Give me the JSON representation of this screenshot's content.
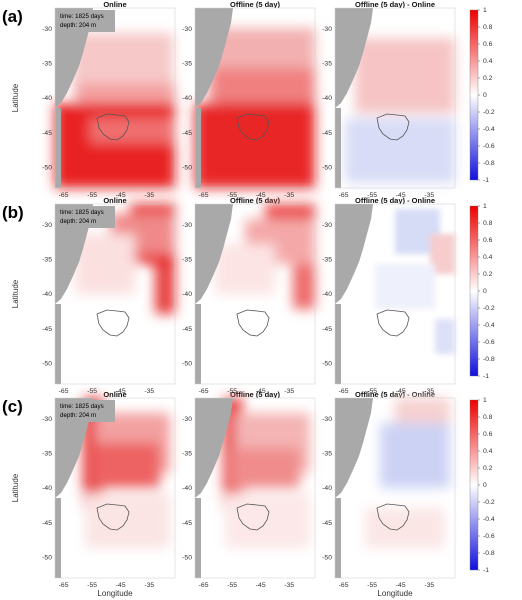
{
  "chart_data": {
    "type": "heatmap",
    "rows": [
      "(a)",
      "(b)",
      "(c)"
    ],
    "column_titles": [
      "Online",
      "Offline (5 day)",
      "Offline (5 day) - Online"
    ],
    "annotation": {
      "time": "time: 1825 days",
      "depth": "depth: 204 m"
    },
    "xlabel": "Longitude",
    "ylabel": "Latitude",
    "x_ticks": [
      "-65",
      "-55",
      "-45",
      "-35"
    ],
    "y_ticks": [
      "-30",
      "-35",
      "-40",
      "-45",
      "-50"
    ],
    "xlim": [
      -68,
      -26
    ],
    "ylim": [
      -53,
      -27
    ],
    "colorbar": {
      "min": -1,
      "max": 1,
      "ticks": [
        "1",
        "0.8",
        "0.6",
        "0.4",
        "0.2",
        "0",
        "-0.2",
        "-0.4",
        "-0.6",
        "-0.8",
        "-1"
      ],
      "colors": [
        "#1010dd",
        "#ffffff",
        "#ee0000"
      ]
    },
    "colors": {
      "land": "#a9a9a9",
      "ocean_background": "#ffffff",
      "contour": "#555555"
    },
    "grid": false,
    "panels_mean_field": [
      [
        0.45,
        0.5,
        0.05
      ],
      [
        0.2,
        0.25,
        0.02
      ],
      [
        0.35,
        0.3,
        -0.05
      ]
    ]
  }
}
